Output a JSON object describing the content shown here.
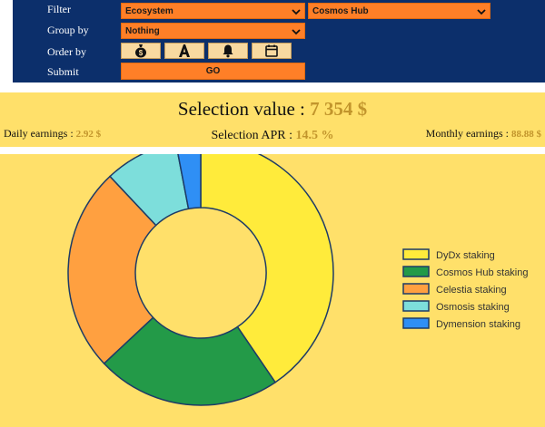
{
  "form": {
    "filter_label": "Filter",
    "group_by_label": "Group by",
    "order_by_label": "Order by",
    "submit_label": "Submit",
    "filter_select_value": "Ecosystem",
    "filter_value_select_value": "Cosmos Hub",
    "group_by_select_value": "Nothing",
    "order_buttons": [
      {
        "icon": "money-bag-icon"
      },
      {
        "icon": "alphabet-icon"
      },
      {
        "icon": "bell-icon"
      },
      {
        "icon": "calendar-icon"
      }
    ],
    "go_label": "GO"
  },
  "summary": {
    "selection_value_label": "Selection value :",
    "selection_value": "7 354 $",
    "daily_earnings_label": "Daily earnings :",
    "daily_earnings": "2.92 $",
    "selection_apr_label": "Selection APR :",
    "selection_apr": "14.5 %",
    "monthly_earnings_label": "Monthly earnings :",
    "monthly_earnings": "88.88 $"
  },
  "colors": {
    "navy": "#0c2f6b",
    "orange": "#ff7f27",
    "panel_yellow": "#ffe06a",
    "gold_text": "#c2952c"
  },
  "chart_data": {
    "type": "pie",
    "donut": true,
    "legend_position": "right",
    "series": [
      {
        "name": "DyDx staking",
        "value": 40.5,
        "color": "#ffeb3b"
      },
      {
        "name": "Cosmos Hub staking",
        "value": 22.5,
        "color": "#239a48"
      },
      {
        "name": "Celestia staking",
        "value": 25.0,
        "color": "#ffa040"
      },
      {
        "name": "Osmosis staking",
        "value": 9.0,
        "color": "#7ddedb"
      },
      {
        "name": "Dymension staking",
        "value": 3.0,
        "color": "#2f8ff5"
      }
    ]
  }
}
